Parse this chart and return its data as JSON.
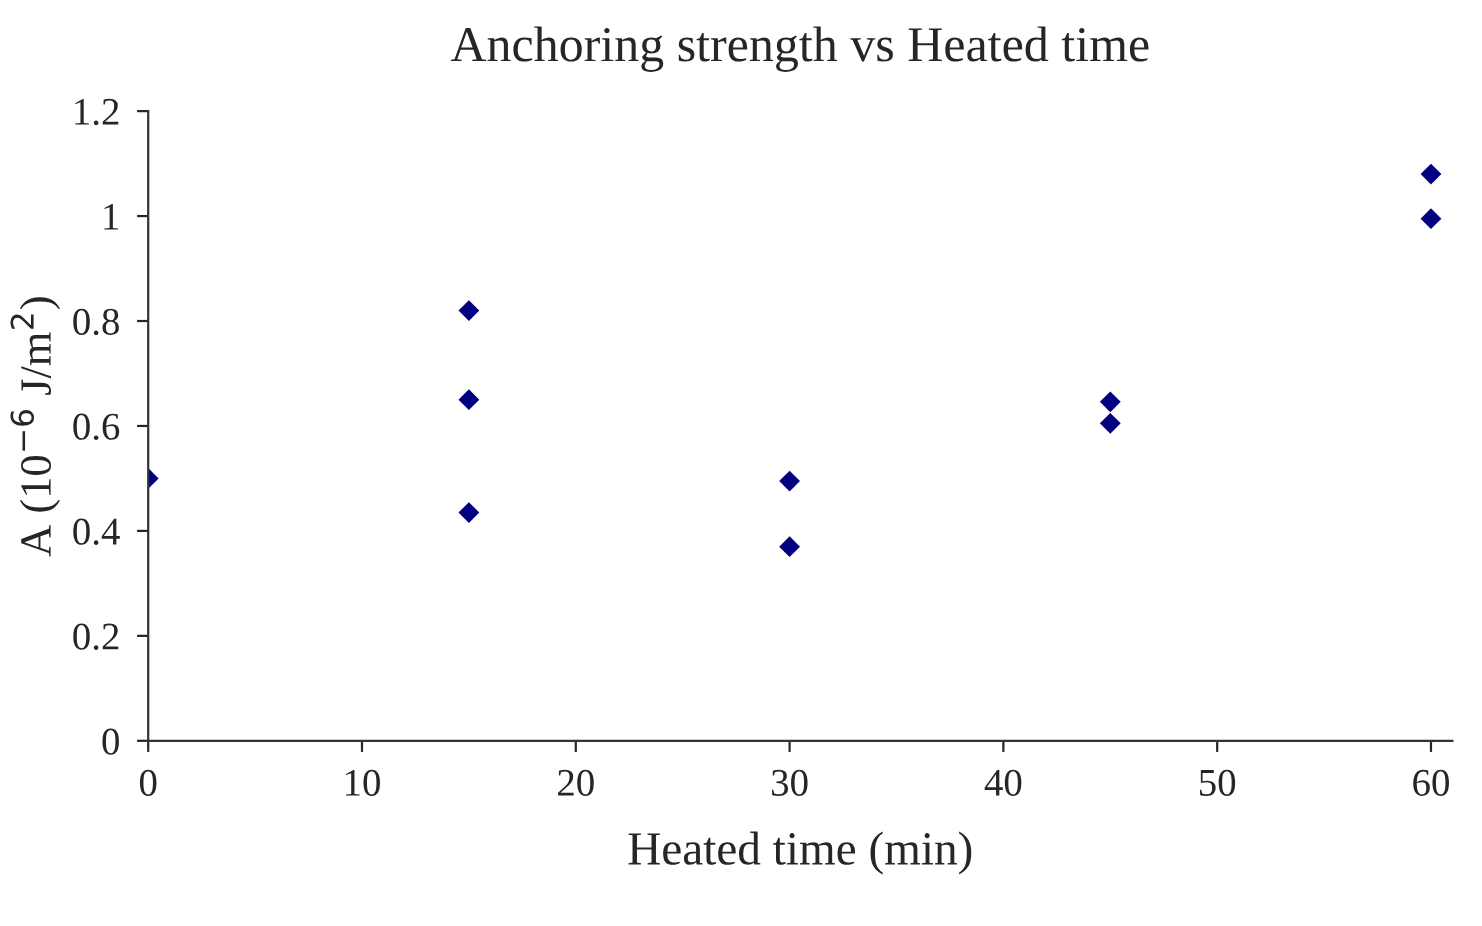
{
  "chart_data": {
    "type": "scatter",
    "title": "Anchoring strength vs Heated time",
    "xlabel": "Heated time (min)",
    "ylabel": "A (10$^{−6}$ J/m$^{2}$)",
    "x": [
      0,
      15,
      15,
      15,
      30,
      30,
      45,
      45,
      60,
      60
    ],
    "series": [
      {
        "color": "#000080",
        "values": [
          0.5,
          0.82,
          0.65,
          0.435,
          0.495,
          0.37,
          0.646,
          0.605,
          1.08,
          0.995
        ]
      }
    ],
    "xlim": [
      0,
      61
    ],
    "xticks": [
      0,
      10,
      20,
      30,
      40,
      50,
      60
    ],
    "ylim": [
      0,
      1.2
    ],
    "yticks": [
      0,
      0.2,
      0.4,
      0.6,
      0.8,
      1,
      1.2
    ],
    "marker": "diamond",
    "grid": false,
    "legend": false
  }
}
